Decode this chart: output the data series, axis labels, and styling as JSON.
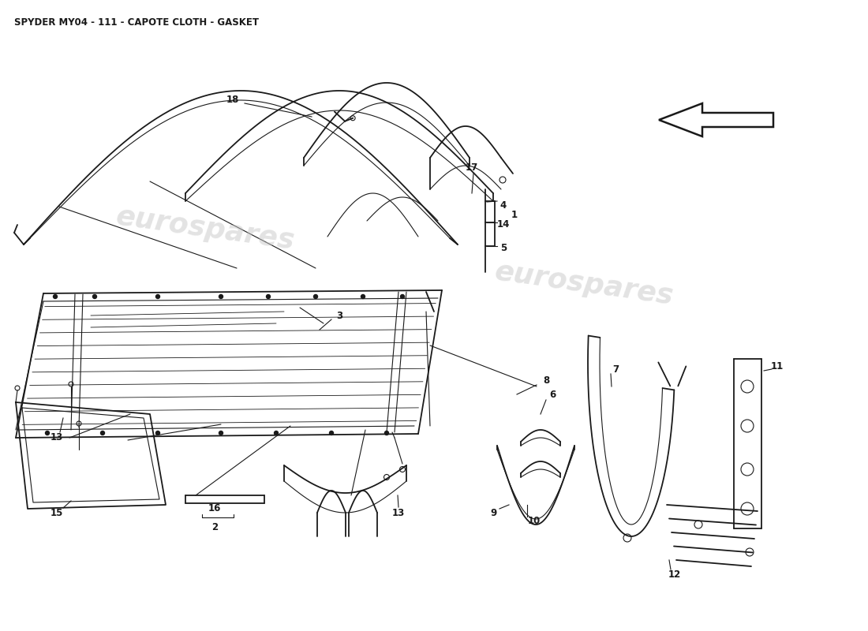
{
  "title": "SPYDER MY04 - 111 - CAPOTE CLOTH - GASKET",
  "title_fontsize": 8.5,
  "title_color": "#1a1a1a",
  "background_color": "#ffffff",
  "line_color": "#1a1a1a",
  "watermark_color_rgba": [
    0.78,
    0.78,
    0.78,
    0.38
  ],
  "fig_width": 11.0,
  "fig_height": 8.0,
  "dpi": 100
}
